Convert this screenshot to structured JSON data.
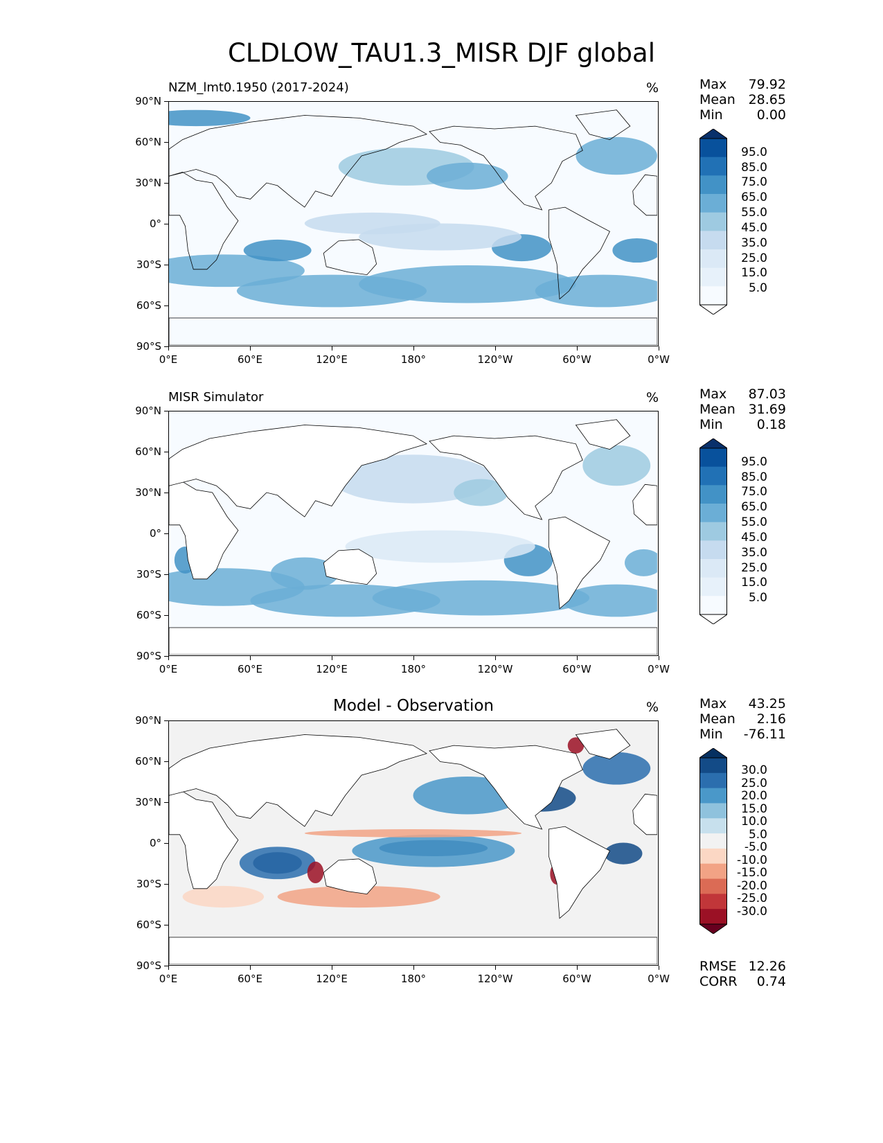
{
  "title": "CLDLOW_TAU1.3_MISR DJF global",
  "axes": {
    "lat_ticks": [
      "90°N",
      "60°N",
      "30°N",
      "0°",
      "30°S",
      "60°S",
      "90°S"
    ],
    "lon_ticks": [
      "0°E",
      "60°E",
      "120°E",
      "180°",
      "120°W",
      "60°W",
      "0°W"
    ]
  },
  "panels": [
    {
      "label": "NZM_lmt0.1950 (2017-2024)",
      "unit": "%",
      "stats": [
        [
          "Max",
          "79.92"
        ],
        [
          "Mean",
          "28.65"
        ],
        [
          "Min",
          "0.00"
        ]
      ],
      "colorbar": {
        "labels": [
          "95.0",
          "85.0",
          "75.0",
          "65.0",
          "55.0",
          "45.0",
          "35.0",
          "25.0",
          "15.0",
          "5.0"
        ],
        "colors": [
          "#08306b",
          "#08519c",
          "#2171b5",
          "#4292c6",
          "#6baed6",
          "#9ecae1",
          "#c6dbef",
          "#dbe9f6",
          "#e7f1fa",
          "#f7fbff",
          "#ffffff"
        ]
      }
    },
    {
      "label": "MISR Simulator",
      "unit": "%",
      "stats": [
        [
          "Max",
          "87.03"
        ],
        [
          "Mean",
          "31.69"
        ],
        [
          "Min",
          "0.18"
        ]
      ],
      "colorbar": {
        "labels": [
          "95.0",
          "85.0",
          "75.0",
          "65.0",
          "55.0",
          "45.0",
          "35.0",
          "25.0",
          "15.0",
          "5.0"
        ],
        "colors": [
          "#08306b",
          "#08519c",
          "#2171b5",
          "#4292c6",
          "#6baed6",
          "#9ecae1",
          "#c6dbef",
          "#dbe9f6",
          "#e7f1fa",
          "#f7fbff",
          "#ffffff"
        ]
      }
    },
    {
      "label": "Model - Observation",
      "unit": "%",
      "stats": [
        [
          "Max",
          "43.25"
        ],
        [
          "Mean",
          "2.16"
        ],
        [
          "Min",
          "-76.11"
        ]
      ],
      "extra_stats": [
        [
          "RMSE",
          "12.26"
        ],
        [
          "CORR",
          "0.74"
        ]
      ],
      "colorbar": {
        "labels": [
          "30.0",
          "25.0",
          "20.0",
          "15.0",
          "10.0",
          "5.0",
          "-5.0",
          "-10.0",
          "-15.0",
          "-20.0",
          "-25.0",
          "-30.0"
        ],
        "colors": [
          "#053061",
          "#134b87",
          "#2b6eae",
          "#4a98c9",
          "#8fc2dd",
          "#c7e0ed",
          "#f2f2f2",
          "#fbd7c4",
          "#f2a385",
          "#db6b55",
          "#c13639",
          "#9b1125",
          "#67001f"
        ]
      }
    }
  ]
}
